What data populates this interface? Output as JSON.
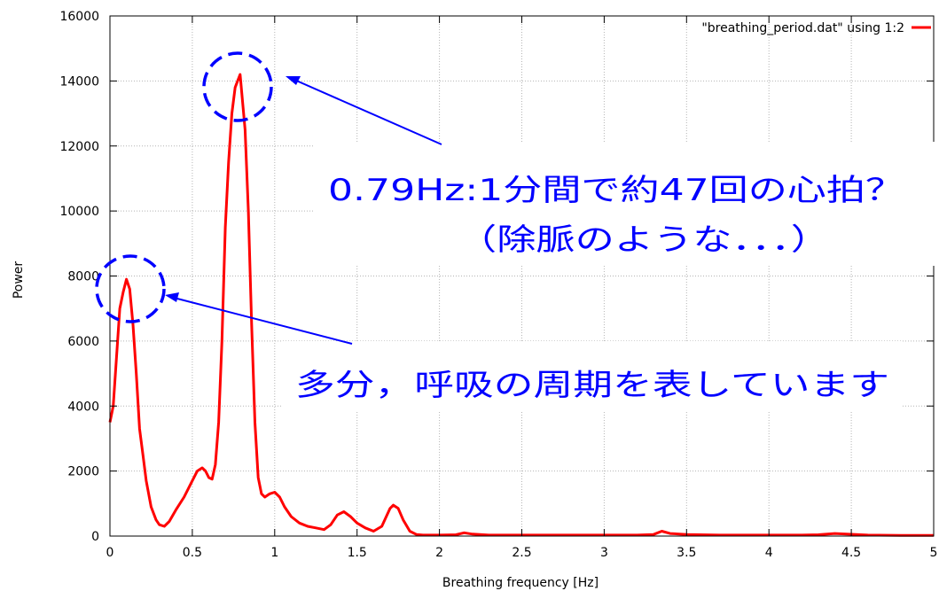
{
  "chart_data": {
    "type": "line",
    "xlabel": "Breathing frequency [Hz]",
    "ylabel": "Power",
    "xlim": [
      0,
      5
    ],
    "ylim": [
      0,
      16000
    ],
    "xticks": [
      0,
      0.5,
      1,
      1.5,
      2,
      2.5,
      3,
      3.5,
      4,
      4.5,
      5
    ],
    "xtick_labels": [
      "0",
      "0.5",
      "1",
      "1.5",
      "2",
      "2.5",
      "3",
      "3.5",
      "4",
      "4.5",
      "5"
    ],
    "yticks": [
      0,
      2000,
      4000,
      6000,
      8000,
      10000,
      12000,
      14000,
      16000
    ],
    "ytick_labels": [
      "0",
      "2000",
      "4000",
      "6000",
      "8000",
      "10000",
      "12000",
      "14000",
      "16000"
    ],
    "grid": true,
    "legend_position": "top-right",
    "series": [
      {
        "name": "\"breathing_period.dat\" using 1:2",
        "color": "#ff0000",
        "x": [
          0,
          0.02,
          0.04,
          0.06,
          0.08,
          0.1,
          0.12,
          0.14,
          0.16,
          0.18,
          0.2,
          0.22,
          0.25,
          0.28,
          0.3,
          0.33,
          0.36,
          0.4,
          0.45,
          0.5,
          0.53,
          0.56,
          0.58,
          0.6,
          0.62,
          0.64,
          0.66,
          0.68,
          0.7,
          0.72,
          0.74,
          0.76,
          0.79,
          0.82,
          0.84,
          0.86,
          0.88,
          0.9,
          0.92,
          0.94,
          0.97,
          1.0,
          1.03,
          1.06,
          1.1,
          1.15,
          1.2,
          1.25,
          1.3,
          1.34,
          1.38,
          1.42,
          1.46,
          1.5,
          1.55,
          1.6,
          1.65,
          1.7,
          1.72,
          1.75,
          1.78,
          1.82,
          1.86,
          1.9,
          1.95,
          2.0,
          2.1,
          2.15,
          2.2,
          2.3,
          2.5,
          2.8,
          3.0,
          3.2,
          3.3,
          3.35,
          3.4,
          3.5,
          3.7,
          4.0,
          4.2,
          4.3,
          4.4,
          4.6,
          4.8,
          5.0
        ],
        "y": [
          3500,
          4000,
          5500,
          7000,
          7500,
          7900,
          7600,
          6500,
          5000,
          3300,
          2500,
          1700,
          900,
          500,
          350,
          300,
          450,
          800,
          1200,
          1700,
          2000,
          2100,
          2000,
          1800,
          1750,
          2200,
          3500,
          6000,
          9500,
          11500,
          13000,
          13800,
          14200,
          12500,
          10000,
          6500,
          3500,
          1800,
          1300,
          1200,
          1300,
          1350,
          1200,
          900,
          600,
          400,
          300,
          250,
          200,
          350,
          650,
          750,
          600,
          400,
          250,
          150,
          300,
          850,
          950,
          850,
          500,
          150,
          50,
          30,
          30,
          30,
          40,
          100,
          60,
          30,
          30,
          30,
          30,
          30,
          50,
          150,
          80,
          50,
          30,
          30,
          30,
          40,
          80,
          30,
          20,
          20
        ]
      }
    ],
    "annotations": [
      {
        "text": "0.79Hz:1分間で約47回の心拍？",
        "target": [
          0.79,
          14200
        ]
      },
      {
        "text": "（除脈のような．．．）"
      },
      {
        "text": "多分，呼吸の周期を表しています",
        "target": [
          0.1,
          7900
        ]
      }
    ]
  }
}
